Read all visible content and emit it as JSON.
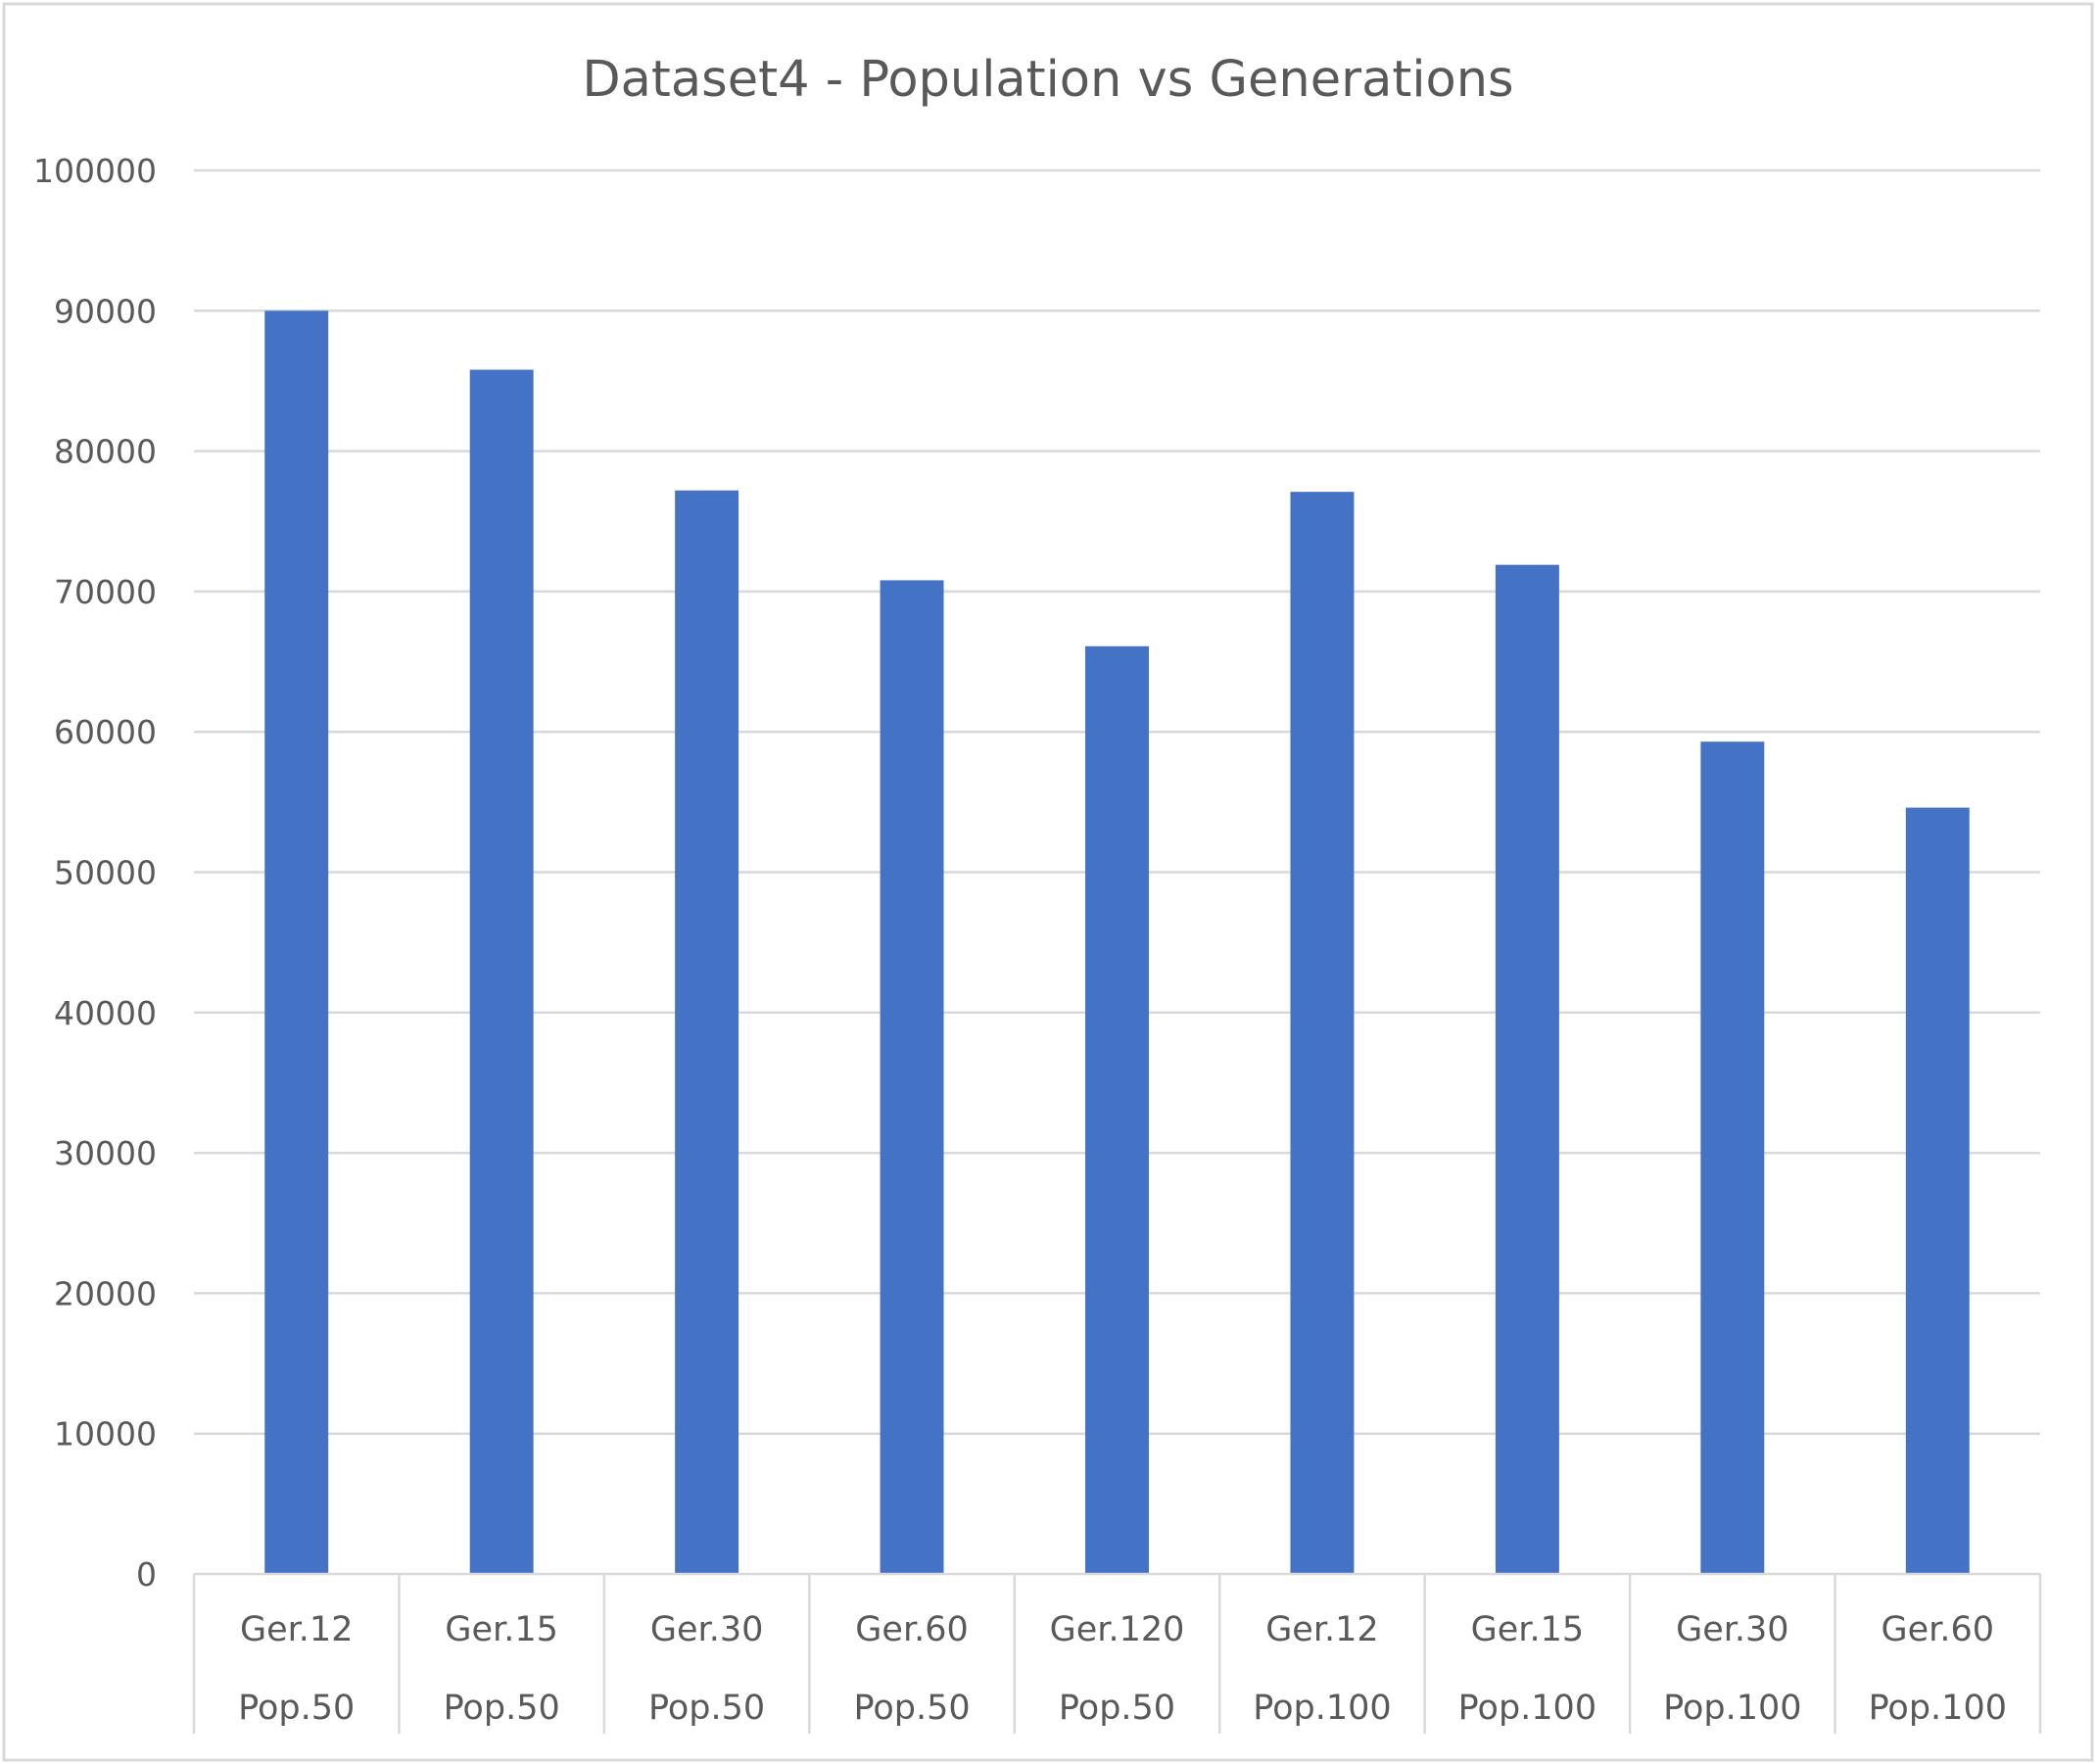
{
  "chart_data": {
    "type": "bar",
    "title": "Dataset4 - Population vs Generations",
    "xlabel": "",
    "ylabel": "",
    "categories": [
      [
        "Ger.12",
        "Pop.50"
      ],
      [
        "Ger.15",
        "Pop.50"
      ],
      [
        "Ger.30",
        "Pop.50"
      ],
      [
        "Ger.60",
        "Pop.50"
      ],
      [
        "Ger.120",
        "Pop.50"
      ],
      [
        "Ger.12",
        "Pop.100"
      ],
      [
        "Ger.15",
        "Pop.100"
      ],
      [
        "Ger.30",
        "Pop.100"
      ],
      [
        "Ger.60",
        "Pop.100"
      ]
    ],
    "values": [
      90000,
      85800,
      77200,
      70800,
      66100,
      77100,
      71900,
      59300,
      54600
    ],
    "ylim": [
      0,
      100000
    ],
    "yticks": [
      "0",
      "10000",
      "20000",
      "30000",
      "40000",
      "50000",
      "60000",
      "70000",
      "80000",
      "90000",
      "100000"
    ],
    "grid": true,
    "legend": "none",
    "colors": {
      "bar": "#4472C4",
      "gridline": "#D9D9D9",
      "text": "#595959",
      "frame": "#D9D9D9"
    }
  }
}
